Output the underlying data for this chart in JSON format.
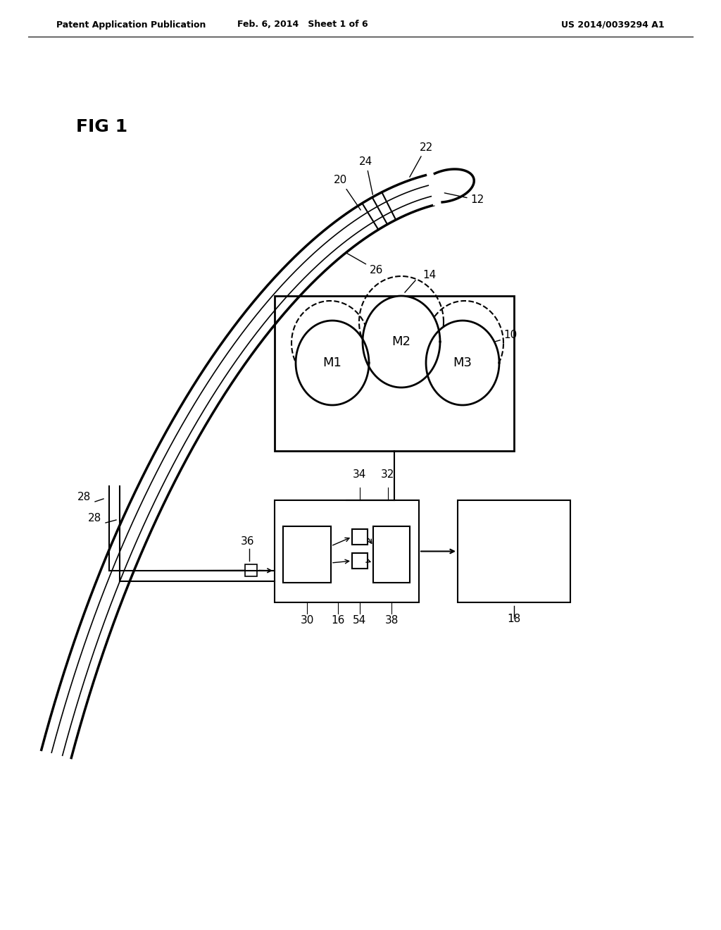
{
  "header_left": "Patent Application Publication",
  "header_mid": "Feb. 6, 2014   Sheet 1 of 6",
  "header_right": "US 2014/0039294 A1",
  "fig_label": "FIG 1",
  "background_color": "#ffffff",
  "line_color": "#000000"
}
